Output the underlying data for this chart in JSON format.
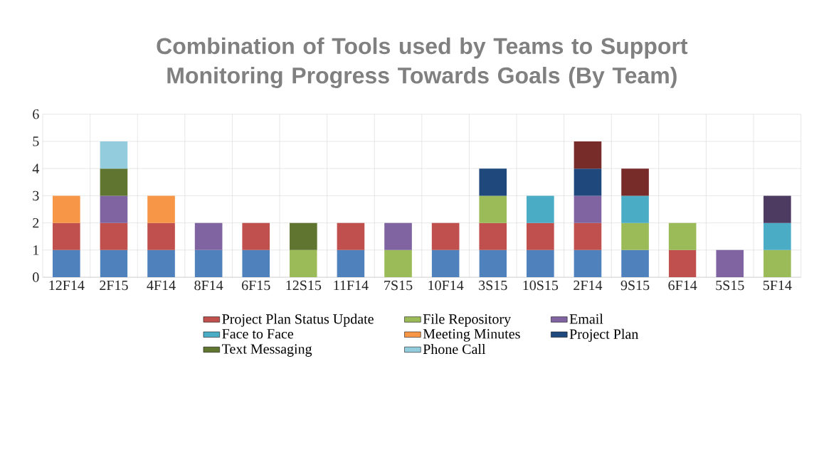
{
  "chart_data": {
    "type": "bar",
    "stacked": true,
    "title": "Combination of Tools used by Teams to Support Monitoring Progress Towards Goals (By Team)",
    "categories": [
      "12F14",
      "2F15",
      "4F14",
      "8F14",
      "6F15",
      "12S15",
      "11F14",
      "7S15",
      "10F14",
      "3S15",
      "10S15",
      "2F14",
      "9S15",
      "6F14",
      "5S15",
      "5F14"
    ],
    "series": [
      {
        "color": "#4f81bd",
        "values": [
          1,
          1,
          1,
          1,
          1,
          null,
          1,
          null,
          1,
          1,
          1,
          1,
          1,
          null,
          null,
          null
        ]
      },
      {
        "name": "Project Plan Status Update",
        "color": "#c0504d",
        "values": [
          1,
          1,
          1,
          null,
          1,
          null,
          1,
          null,
          1,
          1,
          1,
          1,
          null,
          1,
          null,
          null
        ]
      },
      {
        "name": "File Repository",
        "color": "#9bbb59",
        "values": [
          null,
          null,
          null,
          null,
          null,
          1,
          null,
          1,
          null,
          1,
          null,
          null,
          1,
          1,
          null,
          1
        ]
      },
      {
        "name": "Email",
        "color": "#8064a2",
        "values": [
          null,
          1,
          null,
          1,
          null,
          null,
          null,
          1,
          null,
          null,
          null,
          1,
          null,
          null,
          1,
          null
        ]
      },
      {
        "name": "Face to Face",
        "color": "#4bacc6",
        "values": [
          null,
          null,
          null,
          null,
          null,
          null,
          null,
          null,
          null,
          null,
          1,
          null,
          1,
          null,
          null,
          1
        ]
      },
      {
        "name": "Meeting Minutes",
        "color": "#f79646",
        "values": [
          1,
          null,
          1,
          null,
          null,
          null,
          null,
          null,
          null,
          null,
          null,
          null,
          null,
          null,
          null,
          null
        ]
      },
      {
        "name": "Project Plan",
        "color": "#1f497d",
        "values": [
          null,
          null,
          null,
          null,
          null,
          null,
          null,
          null,
          null,
          1,
          null,
          1,
          null,
          null,
          null,
          null
        ]
      },
      {
        "color": "#772c2a",
        "values": [
          null,
          null,
          null,
          null,
          null,
          null,
          null,
          null,
          null,
          null,
          null,
          1,
          1,
          null,
          null,
          null
        ]
      },
      {
        "name": "Text Messaging",
        "color": "#5f7530",
        "values": [
          null,
          1,
          null,
          null,
          null,
          1,
          null,
          null,
          null,
          null,
          null,
          null,
          null,
          null,
          null,
          null
        ]
      },
      {
        "color": "#4d3b62",
        "values": [
          null,
          null,
          null,
          null,
          null,
          null,
          null,
          null,
          null,
          null,
          null,
          null,
          null,
          null,
          null,
          1
        ]
      },
      {
        "name": "Phone Call",
        "color": "#93cddd",
        "values": [
          null,
          1,
          null,
          null,
          null,
          null,
          null,
          null,
          null,
          null,
          null,
          null,
          null,
          null,
          null,
          null
        ]
      }
    ],
    "ylim": [
      0,
      6
    ],
    "yticks": [
      0,
      1,
      2,
      3,
      4,
      5,
      6
    ],
    "grid": true,
    "legend": "bottom"
  }
}
